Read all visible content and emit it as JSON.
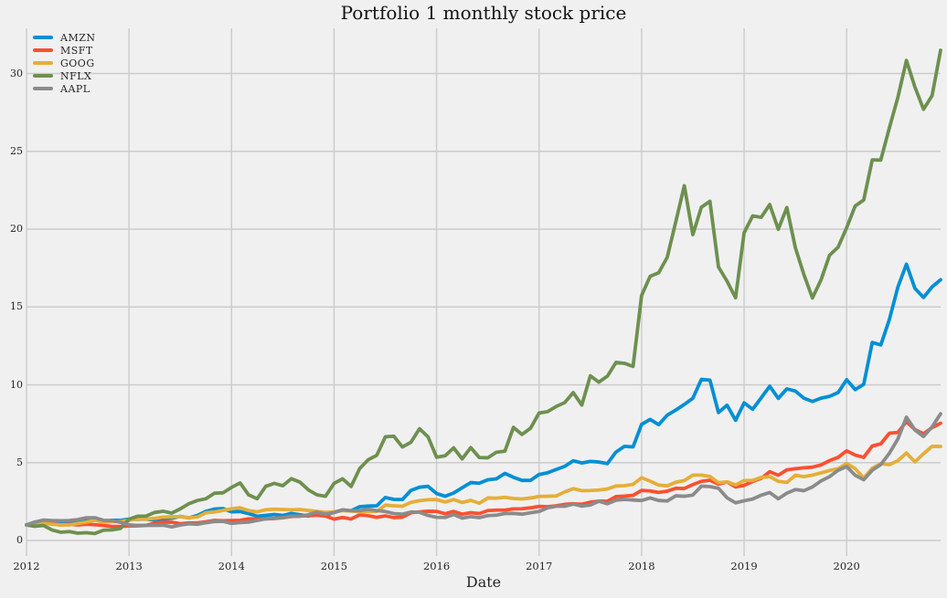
{
  "chart_data": {
    "type": "line",
    "title": "Portfolio 1 monthly stock price",
    "xlabel": "Date",
    "ylabel": "",
    "x_start": "2012-01",
    "x_end": "2020-12",
    "x_frequency": "monthly",
    "xticks": [
      "2012",
      "2013",
      "2014",
      "2015",
      "2016",
      "2017",
      "2018",
      "2019",
      "2020"
    ],
    "yticks": [
      0,
      5,
      10,
      15,
      20,
      25,
      30
    ],
    "ylim": [
      -1.1,
      32.7
    ],
    "grid": true,
    "legend_position": "upper-left",
    "background_color": "#f0f0f0",
    "grid_color": "#cbcbcb",
    "series": [
      {
        "name": "AMZN",
        "color": "#008fd5",
        "values": [
          1.0,
          0.92,
          1.04,
          1.19,
          1.1,
          1.17,
          1.2,
          1.28,
          1.31,
          1.2,
          1.3,
          1.29,
          1.37,
          1.36,
          1.37,
          1.31,
          1.38,
          1.43,
          1.55,
          1.45,
          1.61,
          1.87,
          2.02,
          2.05,
          1.84,
          1.86,
          1.73,
          1.56,
          1.61,
          1.67,
          1.61,
          1.74,
          1.66,
          1.57,
          1.74,
          1.6,
          1.82,
          1.96,
          1.91,
          2.17,
          2.21,
          2.23,
          2.76,
          2.64,
          2.63,
          3.22,
          3.42,
          3.48,
          3.02,
          2.84,
          3.05,
          3.39,
          3.72,
          3.68,
          3.9,
          3.96,
          4.31,
          4.06,
          3.86,
          3.86,
          4.24,
          4.35,
          4.56,
          4.76,
          5.12,
          4.98,
          5.08,
          5.04,
          4.94,
          5.68,
          6.05,
          6.01,
          7.46,
          7.78,
          7.44,
          8.05,
          8.38,
          8.74,
          9.14,
          10.35,
          10.3,
          8.22,
          8.69,
          7.72,
          8.84,
          8.43,
          9.16,
          9.91,
          9.13,
          9.74,
          9.6,
          9.14,
          8.93,
          9.14,
          9.26,
          9.5,
          10.33,
          9.69,
          10.03,
          12.72,
          12.56,
          14.19,
          16.28,
          17.75,
          16.19,
          15.61,
          16.29,
          16.75
        ]
      },
      {
        "name": "MSFT",
        "color": "#fc4f30",
        "values": [
          1.0,
          1.07,
          1.09,
          1.08,
          0.99,
          1.04,
          1.0,
          1.04,
          1.01,
          0.97,
          0.9,
          0.9,
          0.93,
          0.94,
          0.97,
          1.12,
          1.18,
          1.17,
          1.08,
          1.13,
          1.13,
          1.2,
          1.29,
          1.27,
          1.28,
          1.3,
          1.39,
          1.37,
          1.39,
          1.41,
          1.46,
          1.54,
          1.57,
          1.59,
          1.62,
          1.57,
          1.37,
          1.48,
          1.38,
          1.65,
          1.59,
          1.49,
          1.58,
          1.47,
          1.5,
          1.78,
          1.84,
          1.88,
          1.87,
          1.72,
          1.87,
          1.69,
          1.79,
          1.73,
          1.92,
          1.95,
          1.95,
          2.03,
          2.04,
          2.1,
          2.19,
          2.17,
          2.23,
          2.32,
          2.36,
          2.33,
          2.46,
          2.53,
          2.52,
          2.82,
          2.85,
          2.9,
          3.22,
          3.18,
          3.09,
          3.17,
          3.35,
          3.34,
          3.59,
          3.8,
          3.87,
          3.62,
          3.76,
          3.44,
          3.54,
          3.79,
          3.99,
          4.42,
          4.19,
          4.54,
          4.61,
          4.67,
          4.71,
          4.85,
          5.13,
          5.34,
          5.76,
          5.49,
          5.34,
          6.07,
          6.21,
          6.89,
          6.94,
          7.64,
          7.12,
          6.86,
          7.25,
          7.53
        ]
      },
      {
        "name": "GOOG",
        "color": "#e5ae38",
        "values": [
          1.0,
          1.07,
          1.11,
          1.04,
          1.0,
          1.0,
          1.09,
          1.18,
          1.3,
          1.17,
          1.2,
          1.22,
          1.3,
          1.38,
          1.37,
          1.42,
          1.5,
          1.52,
          1.53,
          1.46,
          1.51,
          1.78,
          1.83,
          1.93,
          2.04,
          2.1,
          1.92,
          1.84,
          1.97,
          2.01,
          1.99,
          1.97,
          1.99,
          1.93,
          1.87,
          1.81,
          1.84,
          1.92,
          1.89,
          1.85,
          1.88,
          1.86,
          2.27,
          2.23,
          2.2,
          2.45,
          2.56,
          2.62,
          2.62,
          2.47,
          2.63,
          2.44,
          2.58,
          2.39,
          2.73,
          2.72,
          2.77,
          2.7,
          2.67,
          2.73,
          2.83,
          2.84,
          2.86,
          3.12,
          3.33,
          3.2,
          3.21,
          3.24,
          3.31,
          3.5,
          3.52,
          3.61,
          4.03,
          3.81,
          3.56,
          3.51,
          3.74,
          3.85,
          4.2,
          4.2,
          4.11,
          3.71,
          3.77,
          3.57,
          3.85,
          3.86,
          4.05,
          4.1,
          3.8,
          3.73,
          4.19,
          4.1,
          4.2,
          4.34,
          4.5,
          4.61,
          4.94,
          4.62,
          4.01,
          4.64,
          4.94,
          4.87,
          5.13,
          5.62,
          5.05,
          5.57,
          6.05,
          6.04
        ]
      },
      {
        "name": "NFLX",
        "color": "#6d904f",
        "values": [
          1.0,
          0.92,
          0.96,
          0.67,
          0.53,
          0.57,
          0.47,
          0.5,
          0.45,
          0.66,
          0.68,
          0.77,
          1.37,
          1.56,
          1.57,
          1.8,
          1.88,
          1.76,
          2.03,
          2.36,
          2.57,
          2.68,
          3.04,
          3.06,
          3.41,
          3.7,
          2.93,
          2.68,
          3.48,
          3.67,
          3.52,
          3.97,
          3.75,
          3.25,
          2.93,
          2.84,
          3.67,
          3.96,
          3.47,
          4.62,
          5.19,
          5.47,
          6.66,
          6.7,
          6.01,
          6.31,
          7.18,
          6.66,
          5.35,
          5.44,
          5.95,
          5.24,
          5.97,
          5.33,
          5.31,
          5.67,
          5.74,
          7.27,
          6.81,
          7.21,
          8.19,
          8.28,
          8.61,
          8.86,
          9.5,
          8.7,
          10.58,
          10.17,
          10.56,
          11.44,
          11.38,
          11.18,
          15.74,
          16.97,
          17.2,
          18.19,
          20.47,
          22.79,
          19.65,
          21.41,
          21.79,
          17.57,
          16.66,
          15.59,
          19.77,
          20.85,
          20.76,
          21.58,
          19.99,
          21.39,
          18.81,
          17.08,
          15.58,
          16.74,
          18.32,
          18.84,
          20.09,
          21.49,
          21.87,
          24.45,
          24.44,
          26.5,
          28.47,
          30.84,
          29.12,
          27.7,
          28.57,
          31.49
        ]
      },
      {
        "name": "AAPL",
        "color": "#8b8b8b",
        "values": [
          1.0,
          1.19,
          1.31,
          1.28,
          1.27,
          1.28,
          1.34,
          1.46,
          1.46,
          1.3,
          1.28,
          1.17,
          1.0,
          0.97,
          0.97,
          0.97,
          0.98,
          0.87,
          0.99,
          1.07,
          1.04,
          1.14,
          1.22,
          1.23,
          1.1,
          1.15,
          1.18,
          1.29,
          1.39,
          1.43,
          1.47,
          1.57,
          1.55,
          1.66,
          1.82,
          1.69,
          1.79,
          1.97,
          1.91,
          1.92,
          2.0,
          1.92,
          1.86,
          1.73,
          1.69,
          1.83,
          1.81,
          1.61,
          1.49,
          1.48,
          1.67,
          1.44,
          1.53,
          1.47,
          1.6,
          1.63,
          1.73,
          1.74,
          1.69,
          1.78,
          1.86,
          2.1,
          2.2,
          2.2,
          2.34,
          2.21,
          2.28,
          2.52,
          2.36,
          2.59,
          2.64,
          2.6,
          2.57,
          2.73,
          2.57,
          2.54,
          2.87,
          2.84,
          2.92,
          3.49,
          3.46,
          3.36,
          2.74,
          2.42,
          2.55,
          2.66,
          2.91,
          3.08,
          2.68,
          3.04,
          3.27,
          3.2,
          3.44,
          3.82,
          4.1,
          4.51,
          4.75,
          4.19,
          3.9,
          4.51,
          4.88,
          5.6,
          6.52,
          7.92,
          7.1,
          6.68,
          7.3,
          8.14
        ]
      }
    ]
  }
}
